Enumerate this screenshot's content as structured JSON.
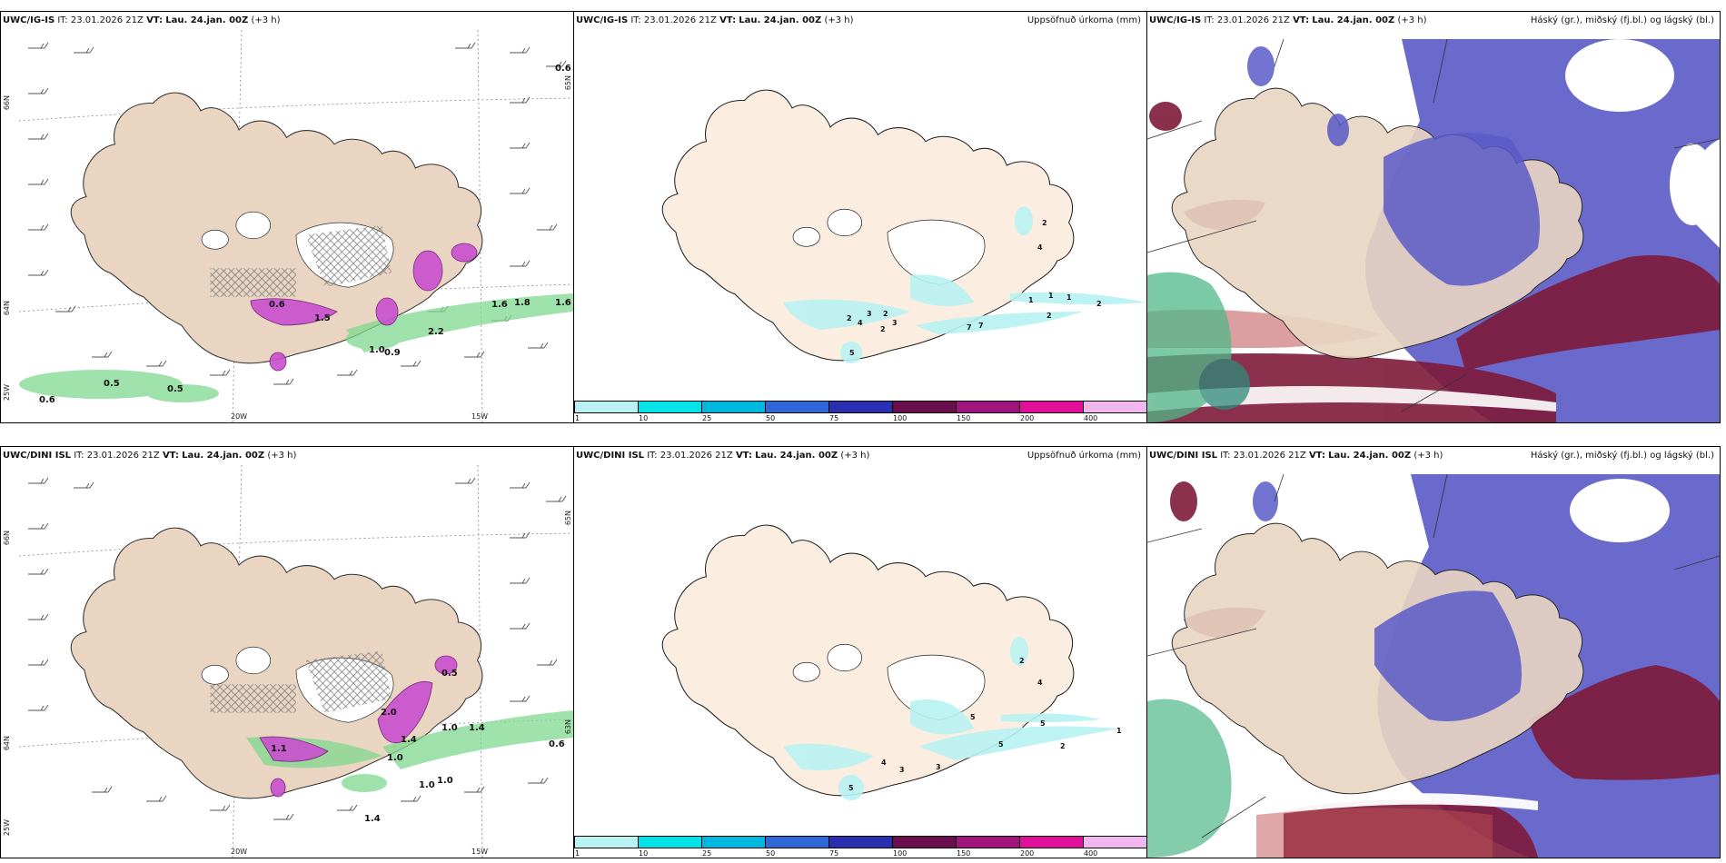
{
  "panels": [
    {
      "model": "UWC/IG-IS",
      "it_label": "IT:",
      "it": "23.01.2026 21Z",
      "vt_label": "VT:",
      "vt": "Lau. 24.jan. 00Z",
      "lead": "(+3 h)",
      "right": ""
    },
    {
      "model": "UWC/IG-IS",
      "it_label": "IT:",
      "it": "23.01.2026 21Z",
      "vt_label": "VT:",
      "vt": "Lau. 24.jan. 00Z",
      "lead": "(+3 h)",
      "right": "Uppsöfnuð úrkoma (mm)"
    },
    {
      "model": "UWC/IG-IS",
      "it_label": "IT:",
      "it": "23.01.2026 21Z",
      "vt_label": "VT:",
      "vt": "Lau. 24.jan. 00Z",
      "lead": "(+3 h)",
      "right": "Háský (gr.), miðský (fj.bl.) og lágský (bl.)"
    },
    {
      "model": "UWC/DINI ISL",
      "it_label": "IT:",
      "it": "23.01.2026 21Z",
      "vt_label": "VT:",
      "vt": "Lau. 24.jan. 00Z",
      "lead": "(+3 h)",
      "right": ""
    },
    {
      "model": "UWC/DINI ISL",
      "it_label": "IT:",
      "it": "23.01.2026 21Z",
      "vt_label": "VT:",
      "vt": "Lau. 24.jan. 00Z",
      "lead": "(+3 h)",
      "right": "Uppsöfnuð úrkoma (mm)"
    },
    {
      "model": "UWC/DINI ISL",
      "it_label": "IT:",
      "it": "23.01.2026 21Z",
      "vt_label": "VT:",
      "vt": "Lau. 24.jan. 00Z",
      "lead": "(+3 h)",
      "right": "Háský (gr.), miðský (fj.bl.) og lágský (bl.)"
    }
  ],
  "axes": {
    "lat_66": "66N",
    "lat_64": "64N",
    "lat_63": "63N",
    "lat_65": "65N",
    "lon_20": "20W",
    "lon_15": "15W",
    "lon_25": "25W",
    "lat_65b": "65N"
  },
  "colorbar": {
    "ticks": [
      "1",
      "10",
      "25",
      "50",
      "75",
      "100",
      "150",
      "200",
      "400"
    ],
    "colors": [
      "#b8f2f2",
      "#00e3e8",
      "#00b7e0",
      "#2f66d8",
      "#2a2fb0",
      "#6a0e4e",
      "#a0157c",
      "#e0109a",
      "#f2b6ee"
    ]
  },
  "top_left_labels": [
    "0.6",
    "1.5",
    "1.0",
    "0.9",
    "2.2",
    "0.6",
    "0.5",
    "0.5",
    "0.6",
    "1.6",
    "1.8",
    "1.6"
  ],
  "top_mid_labels": [
    "2",
    "4",
    "3",
    "2",
    "3",
    "2",
    "5",
    "7",
    "7",
    "1",
    "1",
    "2",
    "2",
    "4",
    "2",
    "1"
  ],
  "bot_left_labels": [
    "1.0",
    "1.0",
    "1.0",
    "1.4",
    "2.0",
    "1.4",
    "0.6",
    "1.1",
    "1.0",
    "1.4",
    "0.5"
  ],
  "bot_mid_labels": [
    "4",
    "3",
    "3",
    "5",
    "5",
    "5",
    "2",
    "1",
    "4",
    "2",
    "5"
  ],
  "colors": {
    "land": "#e9d5c2",
    "land_mid": "#fbeee0",
    "precip_green": "#7fd88f",
    "snow_magenta": "#c94fd0",
    "high_cloud": "#5a5ac8",
    "low_cloud": "#7e1a3a",
    "mid_cloud": "#c05050",
    "green_cloud": "#4fb88a"
  }
}
